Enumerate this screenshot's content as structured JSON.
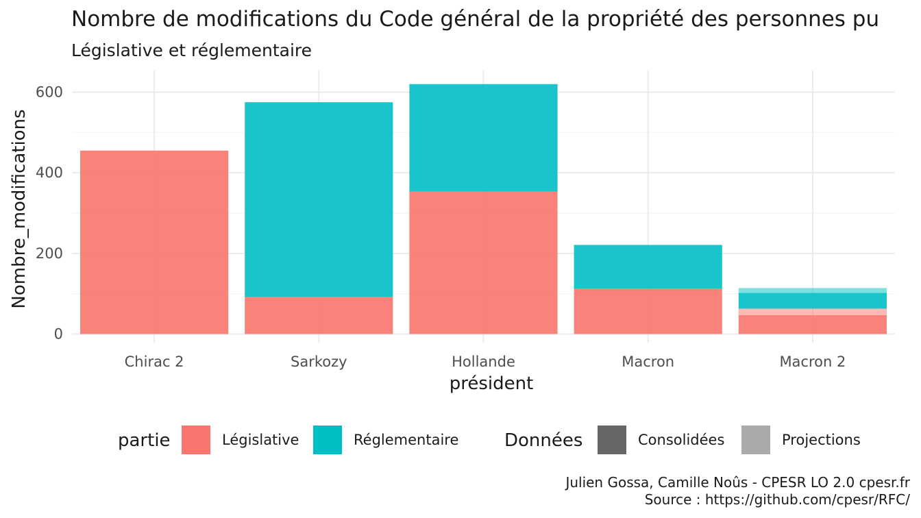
{
  "chart_data": {
    "type": "bar",
    "stacked": true,
    "title": "Nombre de modifications du Code général de la propriété des personnes pu",
    "subtitle": "Législative et réglementaire",
    "xlabel": "président",
    "ylabel": "Nombre_modifications",
    "ylim": [
      0,
      650
    ],
    "yticks": [
      0,
      200,
      400,
      600
    ],
    "grid": true,
    "categories": [
      "Chirac 2",
      "Sarkozy",
      "Hollande",
      "Macron",
      "Macron 2"
    ],
    "series": [
      {
        "name": "Législative",
        "color": "#F8766D",
        "donnees": "Consolidées",
        "values": [
          455,
          92,
          353,
          113,
          47
        ]
      },
      {
        "name": "Législative",
        "color": "#F8766D",
        "donnees": "Projections",
        "values": [
          0,
          0,
          0,
          0,
          16
        ]
      },
      {
        "name": "Réglementaire",
        "color": "#00BFC4",
        "donnees": "Consolidées",
        "values": [
          0,
          483,
          267,
          108,
          39
        ]
      },
      {
        "name": "Réglementaire",
        "color": "#00BFC4",
        "donnees": "Projections",
        "values": [
          0,
          0,
          0,
          0,
          12
        ]
      }
    ],
    "legend": {
      "placement": "bottom",
      "groups": [
        {
          "title": "partie",
          "items": [
            {
              "label": "Législative",
              "color": "#F8766D"
            },
            {
              "label": "Réglementaire",
              "color": "#00BFC4"
            }
          ]
        },
        {
          "title": "Données",
          "items": [
            {
              "label": "Consolidées",
              "color": "#666666"
            },
            {
              "label": "Projections",
              "color": "#AAAAAA"
            }
          ]
        }
      ]
    },
    "caption": [
      "Julien Gossa, Camille Noûs - CPESR LO 2.0 cpesr.fr",
      "Source : https://github.com/cpesr/RFC/"
    ]
  }
}
